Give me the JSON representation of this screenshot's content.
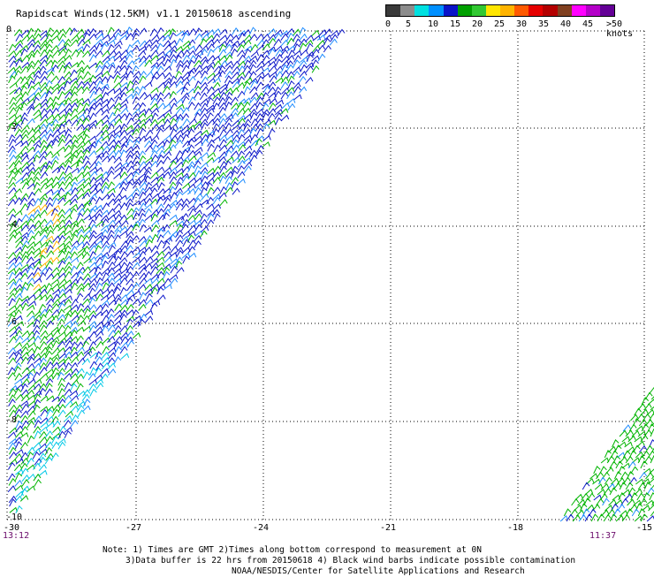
{
  "title": "Rapidscat Winds(12.5KM) v1.1 20150618 ascending",
  "colorbar": {
    "colors": [
      "#3a3a3a",
      "#8c8c8c",
      "#00e0e0",
      "#0090ff",
      "#0a14c8",
      "#00a000",
      "#32c832",
      "#ffe600",
      "#ffb400",
      "#ff5a00",
      "#e60000",
      "#b40000",
      "#804020",
      "#ff00ff",
      "#b400c8",
      "#640096"
    ],
    "labels": [
      "0",
      "5",
      "10",
      "15",
      "20",
      "25",
      "30",
      "35",
      "40",
      "45",
      ">50 knots"
    ]
  },
  "x_ticks": [
    "-30",
    "-27",
    "-24",
    "-21",
    "-18",
    "-15"
  ],
  "y_ticks": [
    "0",
    "-2",
    "-4",
    "-6",
    "-8",
    "-10"
  ],
  "time_labels": {
    "left": "13:12",
    "right": "11:37"
  },
  "notes": {
    "line1": "Note: 1) Times are GMT 2)Times along bottom correspond to measurement at 0N",
    "line2": "3)Data buffer is 22 hrs from 20150618 4) Black wind barbs indicate possible contamination",
    "line3": "NOAA/NESDIS/Center for Satellite Applications and Research"
  }
}
